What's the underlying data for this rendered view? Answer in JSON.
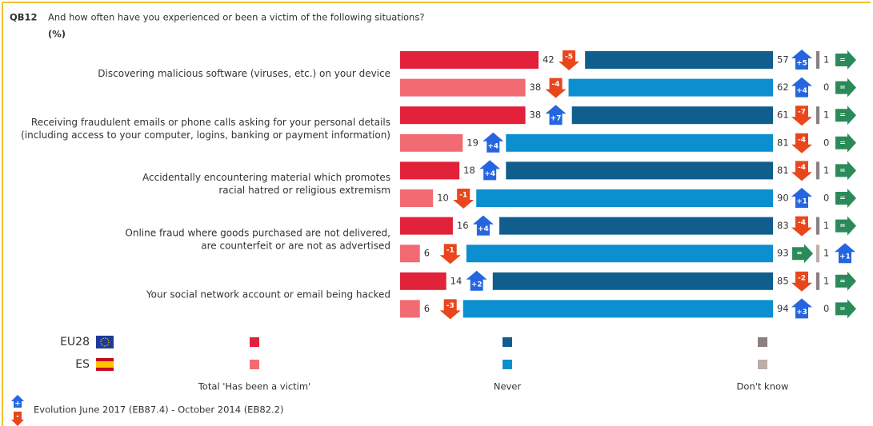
{
  "chart_data": {
    "type": "bar",
    "question_code": "QB12",
    "title": "And how often have you experienced or been a victim of the following situations?",
    "subtitle": "(%)",
    "categories": [
      [
        "Discovering malicious software (viruses, etc.) on your device"
      ],
      [
        "Receiving fraudulent emails or phone calls asking for your personal details",
        "(including access to your computer, logins, banking or payment information)"
      ],
      [
        "Accidentally encountering material which promotes",
        "racial hatred or religious extremism"
      ],
      [
        "Online fraud where goods purchased are not delivered,",
        "are counterfeit or are not as advertised"
      ],
      [
        "Your social network account or email being hacked"
      ]
    ],
    "countries": [
      "EU28",
      "ES"
    ],
    "series": [
      {
        "name": "Total 'Has been a victim'",
        "colors": [
          "#e2213a",
          "#f26a72"
        ],
        "values": [
          [
            42,
            38
          ],
          [
            38,
            19
          ],
          [
            18,
            10
          ],
          [
            16,
            6
          ],
          [
            14,
            6
          ]
        ],
        "changes": [
          [
            "-5",
            "-4"
          ],
          [
            "+7",
            "+4"
          ],
          [
            "+4",
            "-1"
          ],
          [
            "+4",
            "-1"
          ],
          [
            "+2",
            "-3"
          ]
        ]
      },
      {
        "name": "Never",
        "colors": [
          "#0f5e8e",
          "#0b8fcf"
        ],
        "values": [
          [
            57,
            62
          ],
          [
            61,
            81
          ],
          [
            81,
            90
          ],
          [
            83,
            93
          ],
          [
            85,
            94
          ]
        ],
        "changes": [
          [
            "+5",
            "+4"
          ],
          [
            "-7",
            "-4"
          ],
          [
            "-4",
            "+1"
          ],
          [
            "-4",
            "="
          ],
          [
            "-2",
            "+3"
          ]
        ]
      },
      {
        "name": "Don't know",
        "colors": [
          "#8c7f7f",
          "#bcaea8"
        ],
        "values": [
          [
            1,
            0
          ],
          [
            1,
            0
          ],
          [
            1,
            0
          ],
          [
            1,
            1
          ],
          [
            1,
            0
          ]
        ],
        "changes": [
          [
            "=",
            "="
          ],
          [
            "=",
            "="
          ],
          [
            "=",
            "="
          ],
          [
            "=",
            "+1"
          ],
          [
            "=",
            "="
          ]
        ]
      }
    ],
    "arrow_colors": {
      "up": "#2565e0",
      "down": "#e8471e",
      "same": "#2b8a5a"
    },
    "evolution_note": {
      "symbols": [
        "+",
        "-"
      ],
      "text": "Evolution June 2017 (EB87.4)  - October 2014 (EB82.2)"
    }
  }
}
